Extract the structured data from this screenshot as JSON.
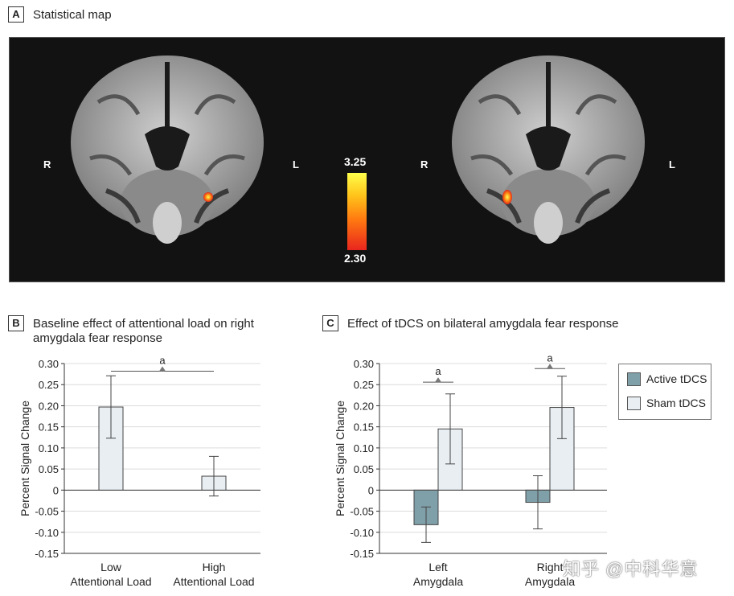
{
  "panel_a": {
    "tag": "A",
    "title": "Statistical map",
    "left_label": "R",
    "right_label": "L",
    "colorbar_max": "3.25",
    "colorbar_min": "2.30",
    "colorbar_colors": [
      "#ffff4a",
      "#ffc21a",
      "#ff7a10",
      "#e8251e"
    ]
  },
  "panel_b": {
    "tag": "B",
    "title_line1": "Baseline effect of attentional load on right",
    "title_line2": "amygdala fear response"
  },
  "panel_c": {
    "tag": "C",
    "title": "Effect of tDCS on bilateral amygdala fear response"
  },
  "legend": {
    "items": [
      {
        "label": "Active tDCS",
        "color": "#7f9fa9"
      },
      {
        "label": "Sham tDCS",
        "color": "#e9eef2"
      }
    ]
  },
  "watermark": "知乎 @中科华意",
  "chart_data": [
    {
      "type": "bar",
      "ylabel": "Percent Signal Change",
      "ylim": [
        -0.15,
        0.3
      ],
      "yticks": [
        "0.30",
        "0.25",
        "0.20",
        "0.15",
        "0.10",
        "0.05",
        "0",
        "-0.05",
        "-0.10",
        "-0.15"
      ],
      "categories": [
        [
          "Low",
          "Attentional Load"
        ],
        [
          "High",
          "Attentional Load"
        ]
      ],
      "values": [
        0.197,
        0.033
      ],
      "errors": [
        0.074,
        0.047
      ],
      "color": "#e9eef2",
      "annotations": [
        {
          "text": "a",
          "between": [
            0,
            1
          ],
          "y": 0.282
        }
      ],
      "grid": true
    },
    {
      "type": "bar",
      "ylabel": "Percent Signal Change",
      "ylim": [
        -0.15,
        0.3
      ],
      "yticks": [
        "0.30",
        "0.25",
        "0.20",
        "0.15",
        "0.10",
        "0.05",
        "0",
        "-0.05",
        "-0.10",
        "-0.15"
      ],
      "categories": [
        [
          "Left",
          "Amygdala"
        ],
        [
          "Right",
          "Amygdala"
        ]
      ],
      "series": [
        {
          "name": "Active tDCS",
          "values": [
            -0.082,
            -0.029
          ],
          "errors": [
            0.042,
            0.063
          ],
          "color": "#7f9fa9"
        },
        {
          "name": "Sham tDCS",
          "values": [
            0.145,
            0.196
          ],
          "errors": [
            0.083,
            0.074
          ],
          "color": "#e9eef2"
        }
      ],
      "annotations": [
        {
          "text": "a",
          "category": 0,
          "y": 0.256
        },
        {
          "text": "a",
          "category": 1,
          "y": 0.288
        }
      ],
      "legend": "right",
      "grid": true
    }
  ]
}
